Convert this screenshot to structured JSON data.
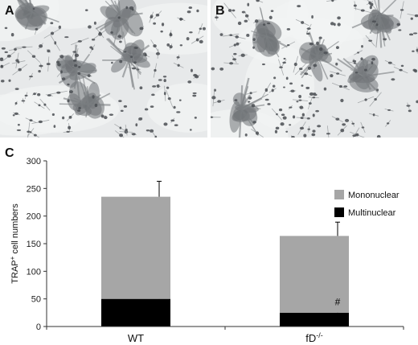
{
  "panels": {
    "a": {
      "label": "A"
    },
    "b": {
      "label": "B"
    },
    "c": {
      "label": "C"
    }
  },
  "chart_data": {
    "type": "bar",
    "stacked": true,
    "categories": [
      "WT",
      "fD"
    ],
    "category_superscripts": [
      "",
      "-/-"
    ],
    "ylabel": "TRAP",
    "ylabel_superscript": "+",
    "ylabel_suffix": " cell numbers",
    "ylim": [
      0,
      300
    ],
    "yticks": [
      0,
      50,
      100,
      150,
      200,
      250,
      300
    ],
    "series": [
      {
        "name": "Multinuclear",
        "color": "#000000",
        "values": [
          50,
          25
        ],
        "errors": [
          5,
          8
        ]
      },
      {
        "name": "Mononuclear",
        "color": "#a6a6a6",
        "values": [
          185,
          139
        ],
        "errors": [
          28,
          25
        ]
      }
    ],
    "annotations": [
      {
        "text": "*",
        "category": "fD",
        "series": "Mononuclear"
      },
      {
        "text": "#",
        "category": "fD",
        "series": "Multinuclear"
      }
    ],
    "legend": "right"
  }
}
